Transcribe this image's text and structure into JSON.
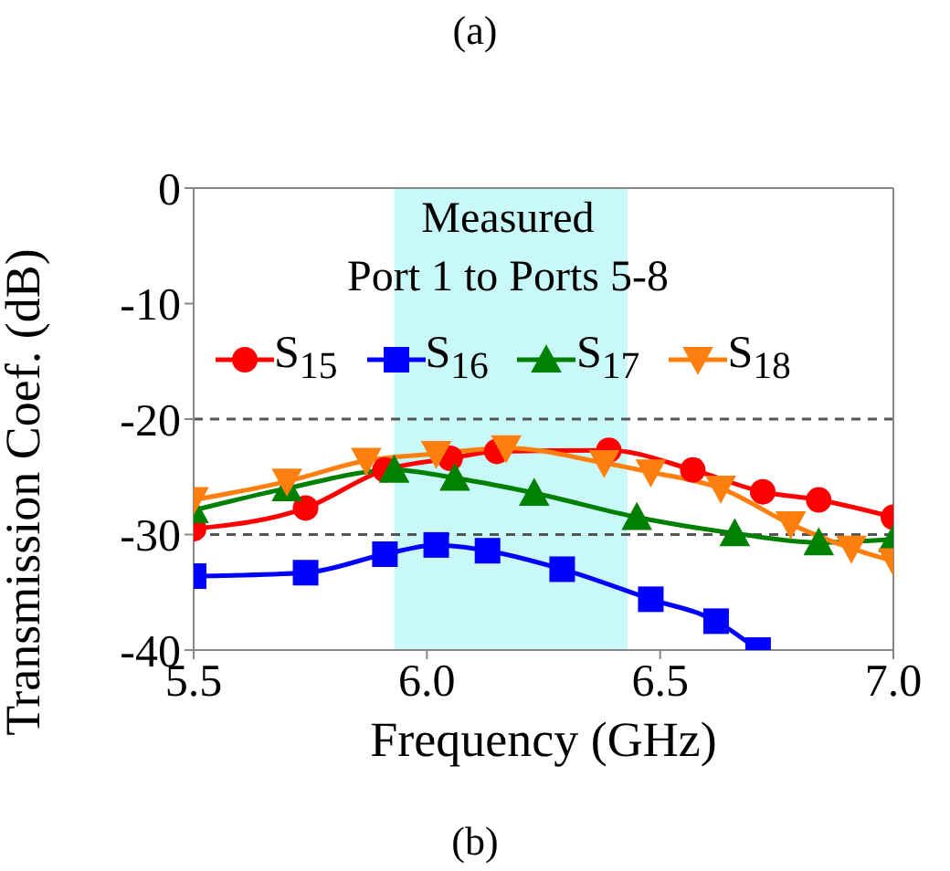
{
  "chart_data": {
    "type": "line",
    "xlabel": "Frequency (GHz)",
    "ylabel": "Transmission Coef. (dB)",
    "annotations": [
      "(a)",
      "Measured\nPort 1 to Ports 5-8",
      "(b)"
    ],
    "xlim": [
      5.5,
      7.0
    ],
    "xticks": [
      {
        "value": 5.5,
        "label": "5.5"
      },
      {
        "value": 6,
        "label": "6.0"
      },
      {
        "value": 6.5,
        "label": "6.5"
      },
      {
        "value": 7,
        "label": "7.0"
      }
    ],
    "ylim": [
      -40,
      0
    ],
    "yticks": [
      0,
      -10,
      -20,
      -30,
      -40
    ],
    "grid": false,
    "legend": "top",
    "line_style": "solid",
    "bands": [
      {
        "axis": "x",
        "from": 5.93,
        "to": 6.43,
        "color": "#c8f8f8"
      }
    ],
    "ref_lines": [
      {
        "axis": "y",
        "value": -20,
        "color": "#555555",
        "line_style": "dashed"
      },
      {
        "axis": "y",
        "value": -30,
        "color": "#555555",
        "line_style": "dashed"
      }
    ],
    "series": [
      {
        "name": "S$_{15}$",
        "color": "#ff0000",
        "marker": "circle",
        "x": [
          5.5,
          5.74,
          5.91,
          6.05,
          6.15,
          6.39,
          6.57,
          6.72,
          6.84,
          7.0
        ],
        "values": [
          -29.5,
          -27.7,
          -24.4,
          -23.4,
          -22.8,
          -22.7,
          -24.4,
          -26.3,
          -27,
          -28.5
        ]
      },
      {
        "name": "S$_{16}$",
        "color": "#0000ff",
        "marker": "square",
        "x": [
          5.5,
          5.74,
          5.91,
          6.02,
          6.13,
          6.29,
          6.48,
          6.62,
          6.71
        ],
        "values": [
          -33.6,
          -33.3,
          -31.7,
          -30.9,
          -31.4,
          -33,
          -35.6,
          -37.5,
          -40
        ]
      },
      {
        "name": "S$_{17}$",
        "color": "#008000",
        "marker": "triangle",
        "x": [
          5.5,
          5.7,
          5.93,
          6.06,
          6.23,
          6.45,
          6.66,
          6.84,
          7.0
        ],
        "values": [
          -27.9,
          -26,
          -24.4,
          -25.1,
          -26.4,
          -28.5,
          -29.9,
          -30.7,
          -30.4
        ]
      },
      {
        "name": "S$_{18}$",
        "color": "#ff7f0e",
        "marker": "triangle-down",
        "x": [
          5.5,
          5.7,
          5.87,
          6.02,
          6.17,
          6.38,
          6.48,
          6.63,
          6.78,
          6.91,
          7.0
        ],
        "values": [
          -27,
          -25.4,
          -23.6,
          -23,
          -22.5,
          -23.8,
          -24.6,
          -26,
          -29.1,
          -31.2,
          -32.3
        ]
      }
    ]
  }
}
